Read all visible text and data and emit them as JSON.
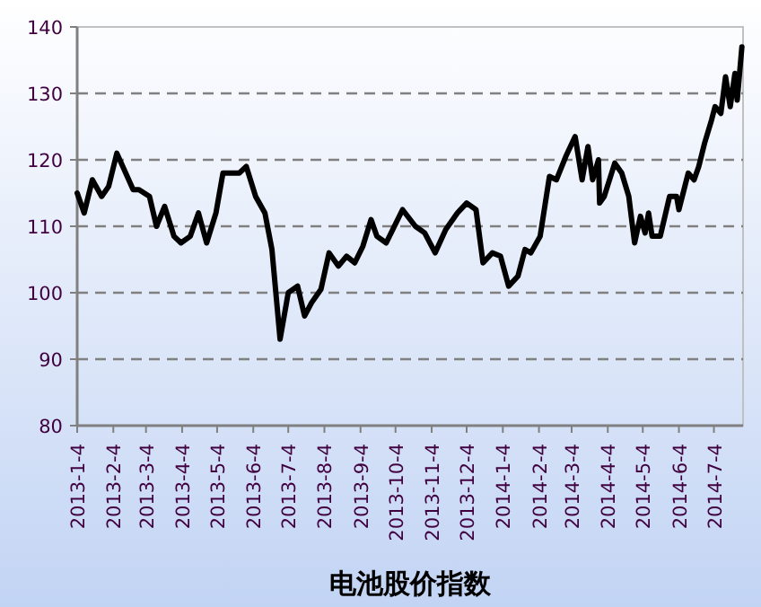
{
  "chart_data": {
    "type": "line",
    "title": "电池股价指数",
    "grid": "y",
    "marker": "none",
    "line_style": "solid",
    "x": [
      "2013-01-04",
      "2013-01-10",
      "2013-01-17",
      "2013-01-25",
      "2013-01-31",
      "2013-02-07",
      "2013-02-21",
      "2013-02-26",
      "2013-03-07",
      "2013-03-13",
      "2013-03-20",
      "2013-03-28",
      "2013-04-03",
      "2013-04-11",
      "2013-04-18",
      "2013-04-25",
      "2013-05-03",
      "2013-05-09",
      "2013-05-16",
      "2013-05-23",
      "2013-05-29",
      "2013-06-06",
      "2013-06-14",
      "2013-06-20",
      "2013-06-27",
      "2013-07-04",
      "2013-07-12",
      "2013-07-18",
      "2013-07-24",
      "2013-08-01",
      "2013-08-08",
      "2013-08-16",
      "2013-08-23",
      "2013-08-30",
      "2013-09-06",
      "2013-09-13",
      "2013-09-18",
      "2013-09-26",
      "2013-10-10",
      "2013-10-21",
      "2013-10-29",
      "2013-11-07",
      "2013-11-16",
      "2013-11-26",
      "2013-12-04",
      "2013-12-12",
      "2013-12-18",
      "2013-12-26",
      "2014-01-02",
      "2014-01-09",
      "2014-01-17",
      "2014-01-23",
      "2014-01-28",
      "2014-02-05",
      "2014-02-13",
      "2014-02-19",
      "2014-02-27",
      "2014-03-07",
      "2014-03-13",
      "2014-03-18",
      "2014-03-22",
      "2014-03-27",
      "2014-03-28",
      "2014-04-01",
      "2014-04-10",
      "2014-04-16",
      "2014-04-22",
      "2014-04-27",
      "2014-05-02",
      "2014-05-06",
      "2014-05-09",
      "2014-05-12",
      "2014-05-19",
      "2014-05-27",
      "2014-06-02",
      "2014-06-04",
      "2014-06-12",
      "2014-06-17",
      "2014-06-21",
      "2014-06-26",
      "2014-07-02",
      "2014-07-05",
      "2014-07-10",
      "2014-07-14",
      "2014-07-18",
      "2014-07-22",
      "2014-07-24",
      "2014-07-28"
    ],
    "series": [
      {
        "color": "#000000",
        "values": [
          115,
          112,
          117,
          114.5,
          116,
          121,
          115.5,
          115.5,
          114.5,
          110,
          113,
          108.5,
          107.5,
          108.5,
          112,
          107.5,
          112,
          118,
          118,
          118,
          119,
          114.5,
          112,
          106.5,
          93,
          100,
          101,
          96.5,
          98.5,
          100.5,
          106,
          104,
          105.5,
          104.5,
          107,
          111,
          108.5,
          107.5,
          112.5,
          110,
          109,
          106,
          109.5,
          112,
          113.5,
          112.5,
          104.5,
          106,
          105.5,
          101,
          102.5,
          106.5,
          106,
          108.5,
          117.5,
          117,
          120.5,
          123.5,
          117,
          122,
          117,
          120,
          113.5,
          114.5,
          119.5,
          118,
          114.5,
          107.5,
          111.5,
          109,
          112,
          108.5,
          108.5,
          114.5,
          114.5,
          112.5,
          118,
          117,
          119,
          122.5,
          126,
          128,
          127,
          132.5,
          128,
          133,
          129,
          137
        ]
      }
    ],
    "xlim": [
      "2013-01-04",
      "2014-07-29"
    ],
    "ylim": [
      80,
      140
    ],
    "yticks": [
      80,
      90,
      100,
      110,
      120,
      130,
      140
    ],
    "xticks": [
      {
        "value": "2013-01-04",
        "label": "2013-1-4"
      },
      {
        "value": "2013-02-04",
        "label": "2013-2-4"
      },
      {
        "value": "2013-03-04",
        "label": "2013-3-4"
      },
      {
        "value": "2013-04-04",
        "label": "2013-4-4"
      },
      {
        "value": "2013-05-04",
        "label": "2013-5-4"
      },
      {
        "value": "2013-06-04",
        "label": "2013-6-4"
      },
      {
        "value": "2013-07-04",
        "label": "2013-7-4"
      },
      {
        "value": "2013-08-04",
        "label": "2013-8-4"
      },
      {
        "value": "2013-09-04",
        "label": "2013-9-4"
      },
      {
        "value": "2013-10-04",
        "label": "2013-10-4"
      },
      {
        "value": "2013-11-04",
        "label": "2013-11-4"
      },
      {
        "value": "2013-12-04",
        "label": "2013-12-4"
      },
      {
        "value": "2014-01-04",
        "label": "2014-1-4"
      },
      {
        "value": "2014-02-04",
        "label": "2014-2-4"
      },
      {
        "value": "2014-03-04",
        "label": "2014-3-4"
      },
      {
        "value": "2014-04-04",
        "label": "2014-4-4"
      },
      {
        "value": "2014-05-04",
        "label": "2014-5-4"
      },
      {
        "value": "2014-06-04",
        "label": "2014-6-4"
      },
      {
        "value": "2014-07-04",
        "label": "2014-7-4"
      }
    ]
  }
}
